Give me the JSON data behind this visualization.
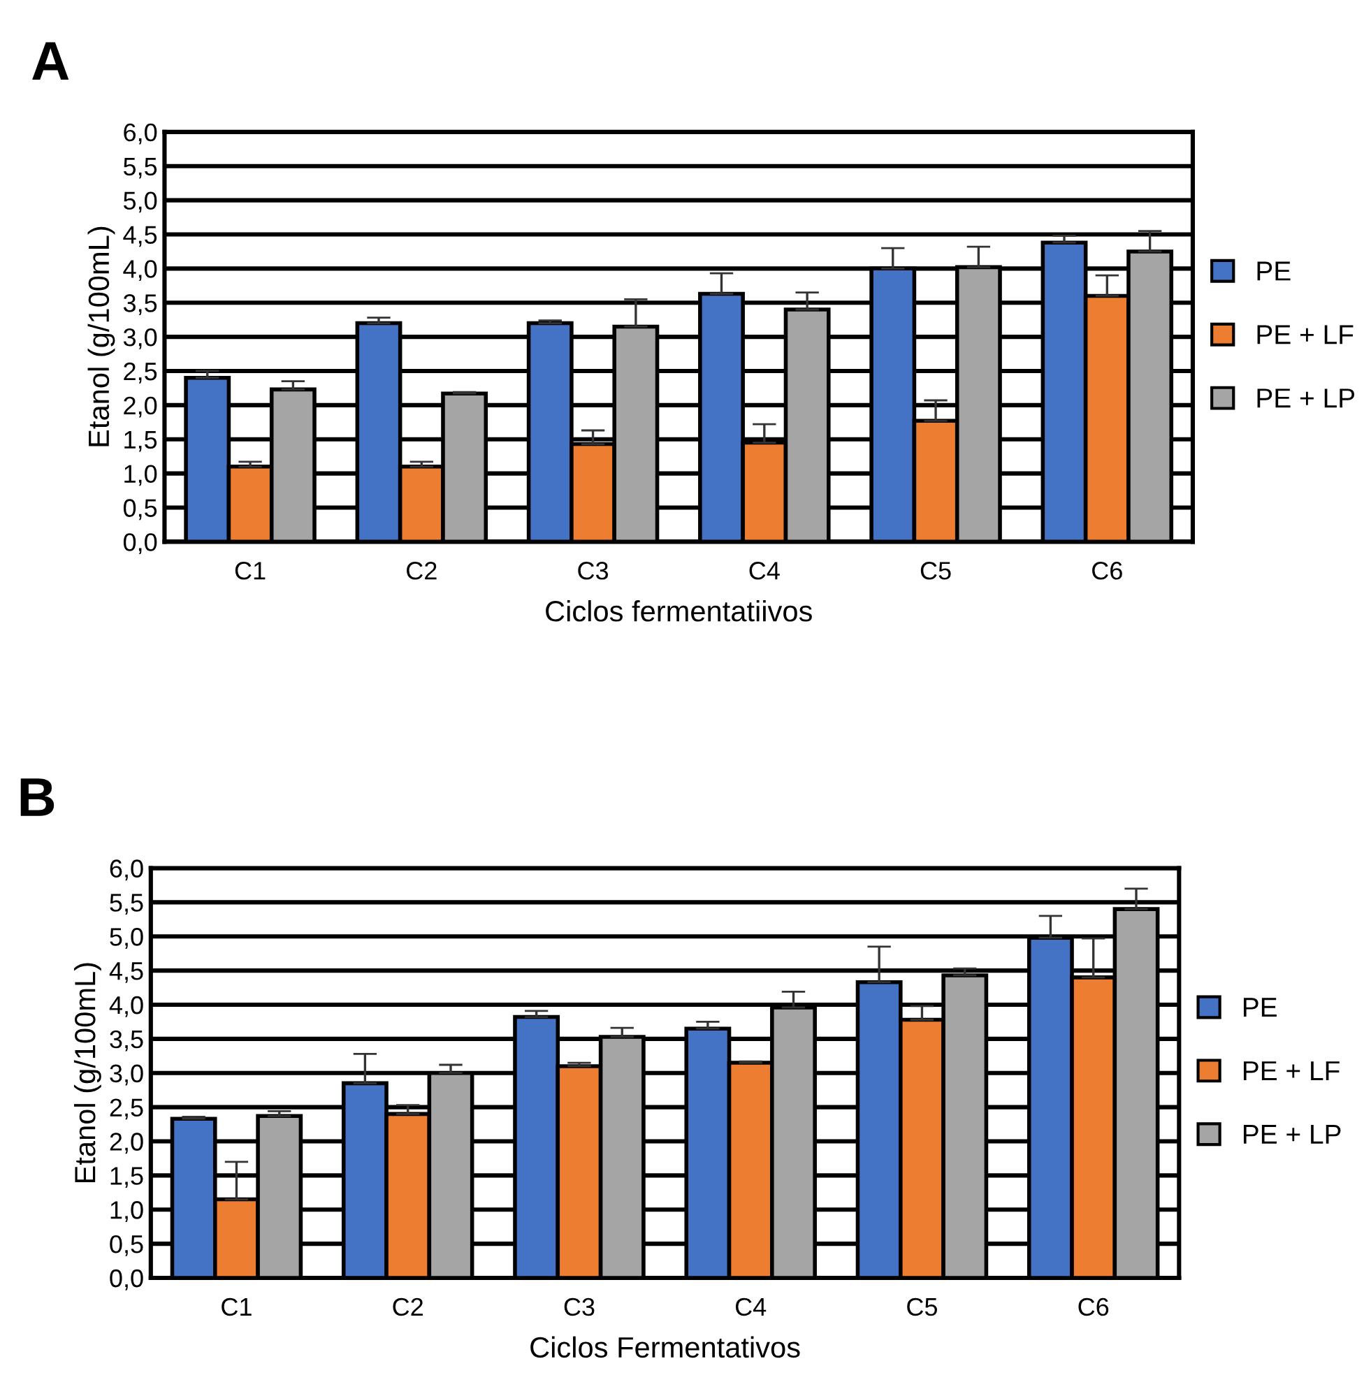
{
  "chart_data": [
    {
      "type": "bar",
      "title": "A",
      "xlabel": "Ciclos fermentatiivos",
      "ylabel": "Etanol (g/100mL)",
      "categories": [
        "C1",
        "C2",
        "C3",
        "C4",
        "C5",
        "C6"
      ],
      "series": [
        {
          "name": "PE",
          "color": "#4472c4",
          "values": [
            2.4,
            3.2,
            3.2,
            3.63,
            4.0,
            4.38
          ],
          "errors": [
            0.1,
            0.08,
            0.04,
            0.3,
            0.3,
            0.1
          ]
        },
        {
          "name": "PE + LF",
          "color": "#ed7d31",
          "values": [
            1.1,
            1.1,
            1.43,
            1.45,
            1.77,
            3.6
          ],
          "errors": [
            0.07,
            0.07,
            0.2,
            0.27,
            0.3,
            0.3
          ]
        },
        {
          "name": "PE + LP",
          "color": "#a5a5a5",
          "values": [
            2.23,
            2.17,
            3.15,
            3.4,
            4.02,
            4.25
          ],
          "errors": [
            0.12,
            0.02,
            0.4,
            0.25,
            0.3,
            0.3
          ]
        }
      ],
      "ylim": [
        0,
        6
      ],
      "yticks": [
        {
          "value": 0,
          "label": "0,0"
        },
        {
          "value": 0.5,
          "label": "0,5"
        },
        {
          "value": 1,
          "label": "1,0"
        },
        {
          "value": 1.5,
          "label": "1,5"
        },
        {
          "value": 2,
          "label": "2,0"
        },
        {
          "value": 2.5,
          "label": "2,5"
        },
        {
          "value": 3,
          "label": "3,0"
        },
        {
          "value": 3.5,
          "label": "3,5"
        },
        {
          "value": 4,
          "label": "4,0"
        },
        {
          "value": 4.5,
          "label": "4,5"
        },
        {
          "value": 5,
          "label": "5,0"
        },
        {
          "value": 5.5,
          "label": "5,5"
        },
        {
          "value": 6,
          "label": "6,0"
        }
      ],
      "grid": "y",
      "legend": "right"
    },
    {
      "type": "bar",
      "title": "B",
      "xlabel": "Ciclos Fermentativos",
      "ylabel": "Etanol (g/100mL)",
      "categories": [
        "C1",
        "C2",
        "C3",
        "C4",
        "C5",
        "C6"
      ],
      "series": [
        {
          "name": "PE",
          "color": "#4472c4",
          "values": [
            2.33,
            2.85,
            3.82,
            3.65,
            4.33,
            4.98
          ],
          "errors": [
            0.03,
            0.43,
            0.09,
            0.1,
            0.52,
            0.32
          ]
        },
        {
          "name": "PE + LF",
          "color": "#ed7d31",
          "values": [
            1.15,
            2.4,
            3.1,
            3.15,
            3.78,
            4.4
          ],
          "errors": [
            0.55,
            0.13,
            0.05,
            0.02,
            0.2,
            0.57
          ]
        },
        {
          "name": "PE + LP",
          "color": "#a5a5a5",
          "values": [
            2.37,
            3.0,
            3.53,
            3.96,
            4.43,
            5.4
          ],
          "errors": [
            0.07,
            0.12,
            0.13,
            0.23,
            0.1,
            0.3
          ]
        }
      ],
      "ylim": [
        0,
        6
      ],
      "yticks": [
        {
          "value": 0,
          "label": "0,0"
        },
        {
          "value": 0.5,
          "label": "0,5"
        },
        {
          "value": 1,
          "label": "1,0"
        },
        {
          "value": 1.5,
          "label": "1,5"
        },
        {
          "value": 2,
          "label": "2,0"
        },
        {
          "value": 2.5,
          "label": "2,5"
        },
        {
          "value": 3,
          "label": "3,0"
        },
        {
          "value": 3.5,
          "label": "3,5"
        },
        {
          "value": 4,
          "label": "4,0"
        },
        {
          "value": 4.5,
          "label": "4,5"
        },
        {
          "value": 5,
          "label": "5,0"
        },
        {
          "value": 5.5,
          "label": "5,5"
        },
        {
          "value": 6,
          "label": "6,0"
        }
      ],
      "grid": "y",
      "legend": "right"
    }
  ]
}
